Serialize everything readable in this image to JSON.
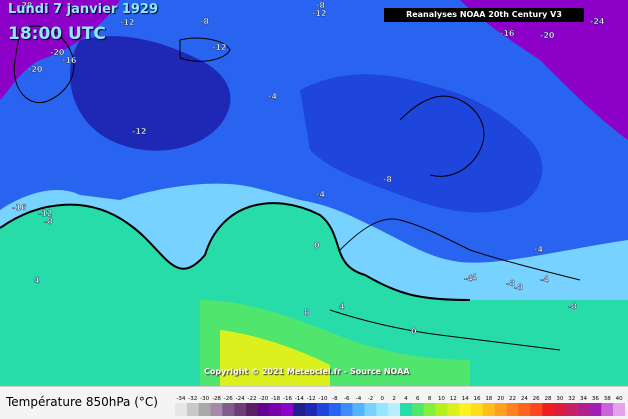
{
  "header": {
    "date": "Lundi 7 janvier 1929",
    "time": "18:00 UTC",
    "source": "Reanalyses NOAA 20th Century V3"
  },
  "footer": {
    "copyright": "Copyright © 2021 Meteociel.fr - Source NOAA",
    "legend_title": "Température 850hPa (°C)"
  },
  "map": {
    "contour_labels": [
      "-20",
      "-12",
      "-28",
      "-16",
      "-20",
      "-8",
      "-12",
      "-8",
      "-16",
      "-20",
      "-24",
      "-12",
      "-4",
      "-12",
      "-16",
      "-12",
      "-8",
      "-4",
      "-8",
      "-4",
      "0",
      "4",
      "-4",
      "-4",
      "-8",
      "-4",
      "-8",
      "-8",
      "0",
      "8",
      "4"
    ]
  },
  "scale": {
    "values": [
      "-34",
      "-32",
      "-30",
      "-28",
      "-26",
      "-24",
      "-22",
      "-20",
      "-18",
      "-16",
      "-14",
      "-12",
      "-10",
      "-8",
      "-6",
      "-4",
      "-2",
      "0",
      "2",
      "4",
      "6",
      "8",
      "10",
      "12",
      "14",
      "16",
      "18",
      "20",
      "22",
      "24",
      "26",
      "28",
      "30",
      "32",
      "34",
      "36",
      "38",
      "40"
    ],
    "colors": [
      "#e6e6e6",
      "#c8c8c8",
      "#a8a8a8",
      "#a58aa8",
      "#825a8c",
      "#6e3c78",
      "#5a1e64",
      "#640096",
      "#7800aa",
      "#8c00c8",
      "#1e1e8c",
      "#1e28b4",
      "#1e46dc",
      "#2864f0",
      "#3c8cff",
      "#50b4ff",
      "#78d2ff",
      "#96e6ff",
      "#b4f0ff",
      "#28dcaa",
      "#50e66e",
      "#82f03c",
      "#b4f01e",
      "#dcf01e",
      "#fff01e",
      "#ffdc1e",
      "#ffbe1e",
      "#ffa01e",
      "#ff821e",
      "#ff641e",
      "#ff461e",
      "#f01e1e",
      "#dc1e3c",
      "#c81e64",
      "#b41e8c",
      "#a01eb4",
      "#c864dc",
      "#e6a0f0"
    ]
  }
}
